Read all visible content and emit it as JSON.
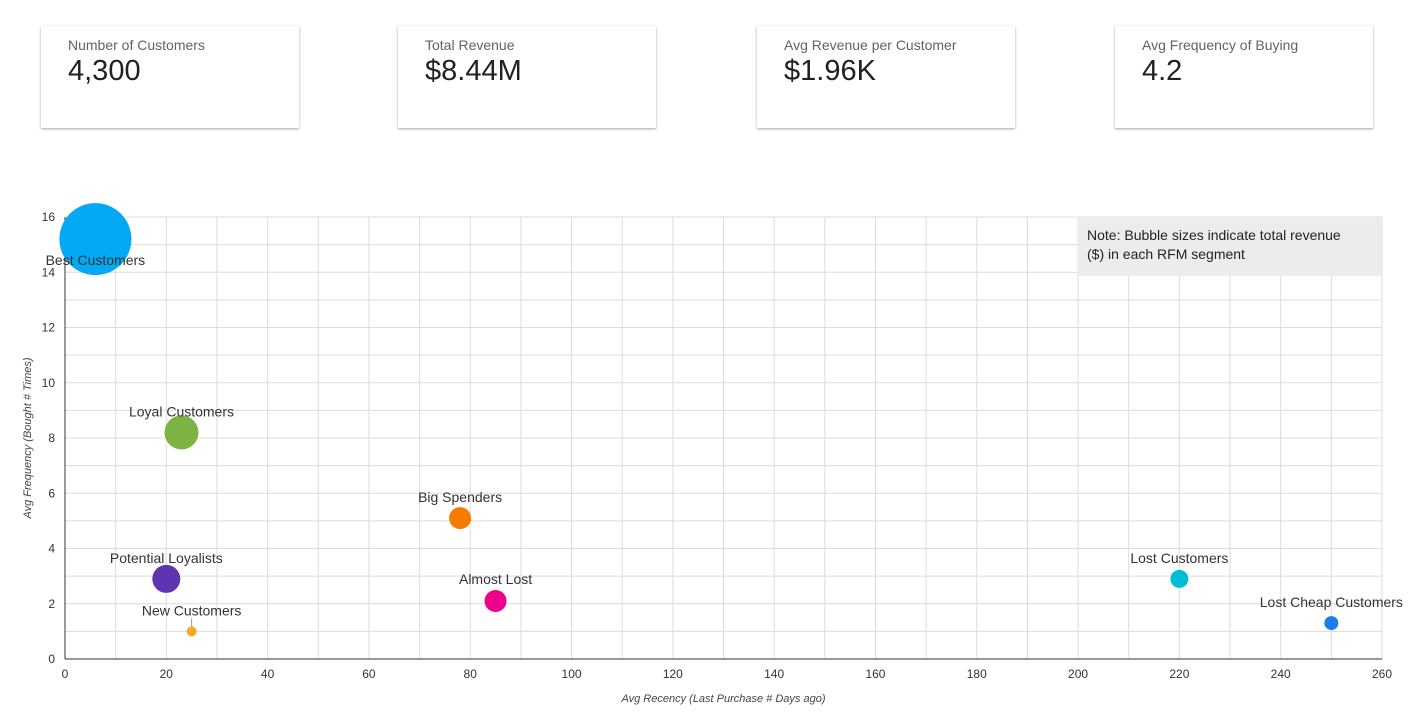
{
  "kpis": [
    {
      "label": "Number of Customers",
      "value": "4,300"
    },
    {
      "label": "Total Revenue",
      "value": "$8.44M"
    },
    {
      "label": "Avg Revenue per Customer",
      "value": "$1.96K"
    },
    {
      "label": "Avg Frequency of Buying",
      "value": "4.2"
    }
  ],
  "note": {
    "line1": "Note: Bubble sizes indicate total revenue",
    "line2": "($) in each RFM segment"
  },
  "chart_data": {
    "type": "scatter",
    "xlabel": "Avg Recency (Last Purchase # Days ago)",
    "ylabel": "Avg Frequency (Bought # Times)",
    "xlim": [
      0,
      260
    ],
    "ylim": [
      0,
      16
    ],
    "xticks": [
      0,
      20,
      40,
      60,
      80,
      100,
      120,
      140,
      160,
      180,
      200,
      220,
      240,
      260
    ],
    "yticks": [
      0,
      2,
      4,
      6,
      8,
      10,
      12,
      14,
      16
    ],
    "grid": true,
    "points": [
      {
        "label": "Best Customers",
        "x": 6,
        "y": 15.2,
        "size": 36,
        "color": "#03a9f4"
      },
      {
        "label": "Loyal Customers",
        "x": 23,
        "y": 8.2,
        "size": 17,
        "color": "#7cb342"
      },
      {
        "label": "Big Spenders",
        "x": 78,
        "y": 5.1,
        "size": 11,
        "color": "#f57c00"
      },
      {
        "label": "Potential Loyalists",
        "x": 20,
        "y": 2.9,
        "size": 14,
        "color": "#5e35b1"
      },
      {
        "label": "Almost Lost",
        "x": 85,
        "y": 2.1,
        "size": 11,
        "color": "#ec008c"
      },
      {
        "label": "New Customers",
        "x": 25,
        "y": 1.0,
        "size": 5,
        "color": "#f9a825"
      },
      {
        "label": "Lost Customers",
        "x": 220,
        "y": 2.9,
        "size": 9,
        "color": "#00bcd4"
      },
      {
        "label": "Lost Cheap Customers",
        "x": 250,
        "y": 1.3,
        "size": 7,
        "color": "#1e7be8"
      }
    ]
  }
}
